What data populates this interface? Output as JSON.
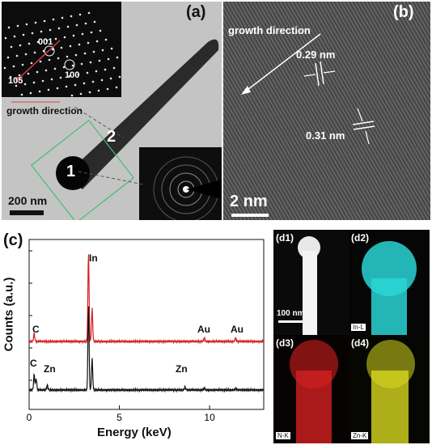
{
  "panel_a": {
    "label": "(a)",
    "saed_spot_labels": [
      "001",
      "100",
      "105"
    ],
    "growth_direction": "growth direction",
    "region_labels": [
      "1",
      "2"
    ],
    "scale_bar": "200 nm"
  },
  "panel_b": {
    "label": "(b)",
    "growth_direction": "growth direction",
    "spacing_1": "0.29 nm",
    "spacing_2": "0.31 nm",
    "scale_bar": "2 nm"
  },
  "panel_c": {
    "label": "(c)",
    "peak_labels": {
      "c_top": "C",
      "in": "In",
      "au1": "Au",
      "au2": "Au",
      "c_bottom": "C",
      "zn1": "Zn",
      "zn2": "Zn"
    },
    "colors": {
      "top": "#d42020",
      "bottom": "#111111"
    }
  },
  "chart_data": {
    "type": "line",
    "xlabel": "Energy (keV)",
    "ylabel": "Counts (a.u.)",
    "xlim": [
      0,
      13
    ],
    "x_ticks": [
      "0",
      "5",
      "10"
    ],
    "series": [
      {
        "color": "#d42020",
        "peaks": [
          [
            0.28,
            0.09
          ],
          [
            3.29,
            1.0
          ],
          [
            3.49,
            0.37
          ],
          [
            9.71,
            0.04
          ],
          [
            11.44,
            0.04
          ]
        ],
        "baseline": 0.0
      },
      {
        "color": "#111111",
        "peaks": [
          [
            0.28,
            0.16
          ],
          [
            0.39,
            0.12
          ],
          [
            1.01,
            0.05
          ],
          [
            3.29,
            0.88
          ],
          [
            3.49,
            0.32
          ],
          [
            8.64,
            0.03
          ],
          [
            9.71,
            0.02
          ],
          [
            11.44,
            0.02
          ]
        ],
        "baseline": 0.0
      }
    ]
  },
  "panel_d": {
    "d1": {
      "label": "(d1)",
      "scale_bar": "100 nm"
    },
    "d2": {
      "label": "(d2)",
      "element": "In-L"
    },
    "d3": {
      "label": "(d3)",
      "element": "N-K"
    },
    "d4": {
      "label": "(d4)",
      "element": "Zn-K"
    },
    "colors": {
      "in": "#2ad6d6",
      "n": "#d42020",
      "zn": "#d8d820"
    }
  }
}
